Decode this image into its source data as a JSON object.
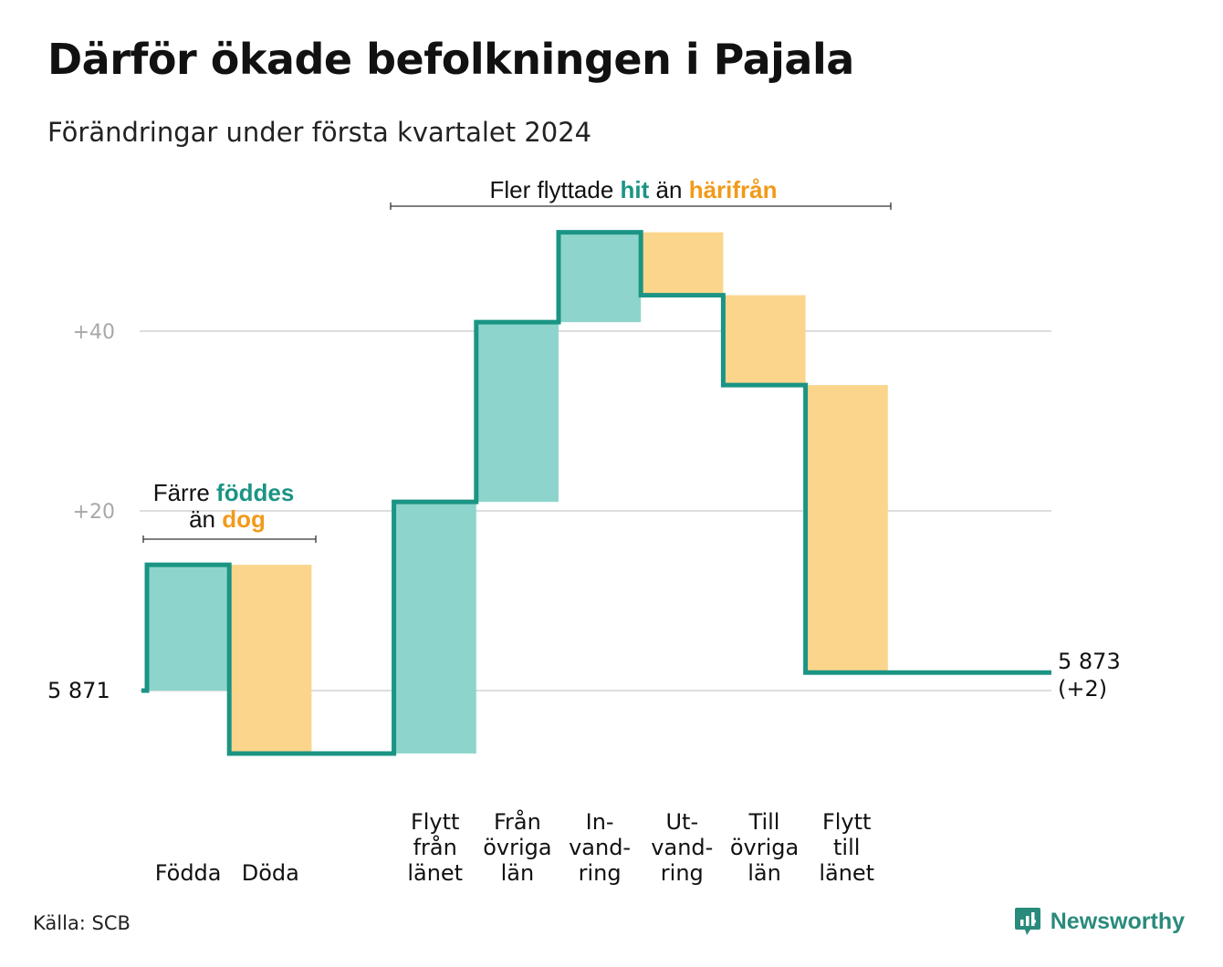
{
  "title": "Därför ökade befolkningen i Pajala",
  "subtitle": "Förändringar under första kvartalet 2024",
  "source": "Källa: SCB",
  "brand": "Newsworthy",
  "colors": {
    "increase_fill": "#8dd5cc",
    "decrease_fill": "#fbd58c",
    "line": "#1b9484",
    "teal_text": "#1b9484",
    "orange_text": "#f29a1a",
    "grid": "#dddddd",
    "tick": "#a8a8a8"
  },
  "chart_data": {
    "type": "waterfall",
    "start_label": "5  871",
    "start_value": 5871,
    "end_label": "5 873",
    "end_change": "(+2)",
    "end_value": 5873,
    "y_ticks": [
      {
        "value": 20,
        "label": "+20"
      },
      {
        "value": 40,
        "label": "+40"
      }
    ],
    "grid_values": [
      0,
      20,
      40
    ],
    "ylim": [
      -7,
      51
    ],
    "steps": [
      {
        "label": [
          "Födda"
        ],
        "change": 14,
        "kind": "increase"
      },
      {
        "label": [
          "Döda"
        ],
        "change": -21,
        "kind": "decrease"
      },
      {
        "label": [],
        "change": 0,
        "kind": "gap"
      },
      {
        "label": [
          "Flytt",
          "från",
          "länet"
        ],
        "change": 28,
        "kind": "increase"
      },
      {
        "label": [
          "Från",
          "övriga",
          "län"
        ],
        "change": 20,
        "kind": "increase"
      },
      {
        "label": [
          "In-",
          "vand-",
          "ring"
        ],
        "change": 10,
        "kind": "increase"
      },
      {
        "label": [
          "Ut-",
          "vand-",
          "ring"
        ],
        "change": -7,
        "kind": "decrease"
      },
      {
        "label": [
          "Till",
          "övriga",
          "län"
        ],
        "change": -10,
        "kind": "decrease"
      },
      {
        "label": [
          "Flytt",
          "till",
          "länet"
        ],
        "change": -32,
        "kind": "decrease"
      }
    ],
    "annotations": {
      "births": {
        "line1_prefix": "Färre",
        "line1_highlight": "föddes",
        "line2_prefix": "än",
        "line2_highlight": "dog"
      },
      "migration": {
        "prefix": "Fler flyttade",
        "highlight1": "hit",
        "middle": "än",
        "highlight2": "härifrån"
      }
    }
  }
}
